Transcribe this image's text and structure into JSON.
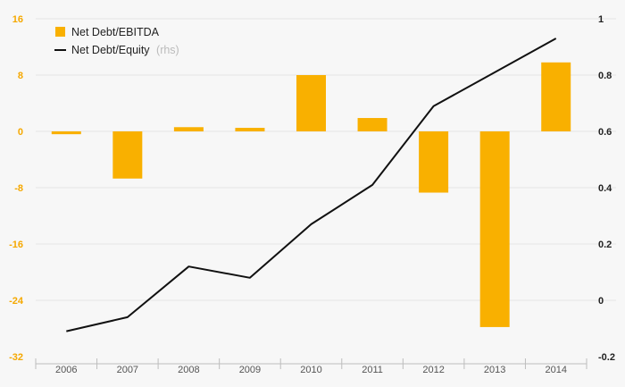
{
  "chart_data": {
    "type": "bar+line",
    "categories": [
      "2006",
      "2007",
      "2008",
      "2009",
      "2010",
      "2011",
      "2012",
      "2013",
      "2014"
    ],
    "series": [
      {
        "name": "Net Debt/EBITDA",
        "type": "bar",
        "axis": "left",
        "values": [
          -0.4,
          -6.7,
          0.6,
          0.5,
          8.0,
          1.9,
          -8.7,
          -27.8,
          9.8
        ]
      },
      {
        "name": "Net Debt/Equity",
        "type": "line",
        "axis": "right",
        "values": [
          -0.11,
          -0.06,
          0.12,
          0.08,
          0.27,
          0.41,
          0.69,
          0.81,
          0.93
        ]
      }
    ],
    "legend": {
      "position": "top-left",
      "items": [
        {
          "label": "Net Debt/EBITDA",
          "note": ""
        },
        {
          "label": "Net Debt/Equity",
          "note": "(rhs)"
        }
      ]
    },
    "y_left": {
      "ylim": [
        -32,
        16
      ],
      "ticks": [
        "16",
        "8",
        "0",
        "-8",
        "-16",
        "-24",
        "-32"
      ]
    },
    "y_right": {
      "ylim": [
        -0.2,
        1.0
      ],
      "ticks": [
        "1",
        "0.8",
        "0.6",
        "0.4",
        "0.2",
        "0",
        "-0.2"
      ]
    },
    "grid": true,
    "colors": {
      "bar": "#f9b000",
      "line": "#111111",
      "left_tick": "#f5a800",
      "right_tick": "#222222",
      "grid": "#e4e4e4",
      "axis": "#bdbdbd"
    }
  }
}
